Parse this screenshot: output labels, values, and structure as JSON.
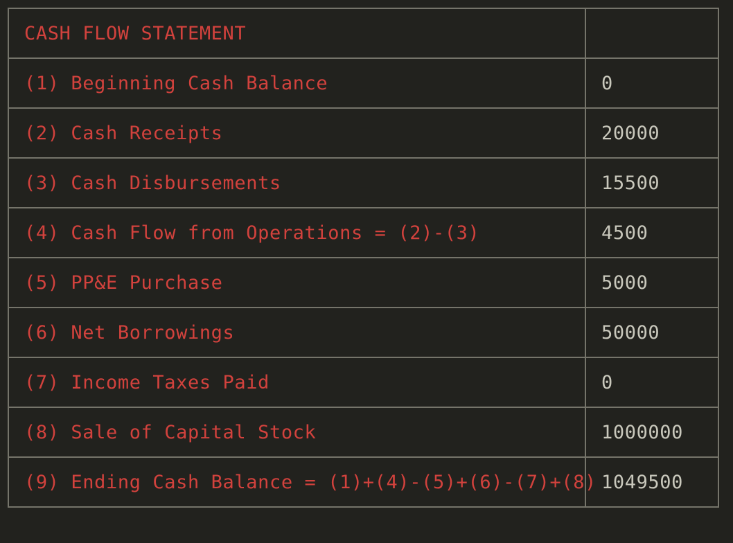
{
  "statement": {
    "header": {
      "label": "CASH FLOW STATEMENT",
      "value": ""
    },
    "rows": [
      {
        "label": "(1) Beginning Cash Balance",
        "value": "0"
      },
      {
        "label": "(2) Cash Receipts",
        "value": "20000"
      },
      {
        "label": "(3) Cash Disbursements",
        "value": "15500"
      },
      {
        "label": "(4) Cash Flow from Operations = (2)-(3)",
        "value": "4500"
      },
      {
        "label": "(5) PP&E Purchase",
        "value": "5000"
      },
      {
        "label": "(6) Net Borrowings",
        "value": "50000"
      },
      {
        "label": "(7) Income Taxes Paid",
        "value": "0"
      },
      {
        "label": "(8) Sale of Capital Stock",
        "value": "1000000"
      },
      {
        "label": "(9) Ending Cash Balance = (1)+(4)-(5)+(6)-(7)+(8)",
        "value": "1049500"
      }
    ]
  },
  "colors": {
    "background": "#22221e",
    "label_text": "#d2423d",
    "value_text": "#c9c8bc",
    "border": "#75746a"
  }
}
